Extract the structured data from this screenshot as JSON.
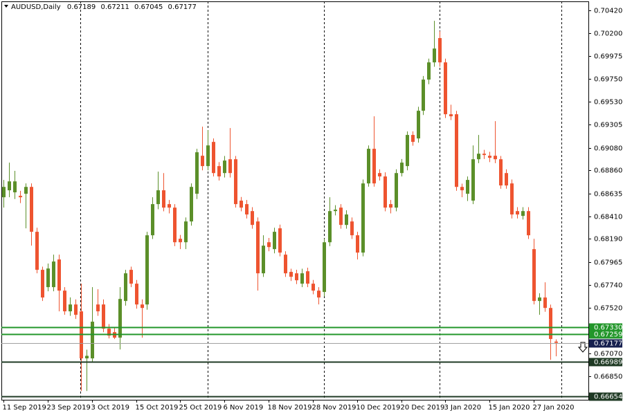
{
  "chart_data": {
    "type": "candlestick",
    "title": "AUDUSD,Daily",
    "bull_color": "#5b8f29",
    "bear_color": "#ee5430",
    "bid_color": "#a0a0a0",
    "bid_label_color": "#16204f",
    "categories": [
      "11 Sep 2019",
      null,
      null,
      null,
      null,
      null,
      null,
      null,
      "23 Sep 2019",
      null,
      null,
      null,
      null,
      null,
      null,
      null,
      "3 Oct 2019",
      null,
      null,
      null,
      null,
      null,
      null,
      null,
      "15 Oct 2019",
      null,
      null,
      null,
      null,
      null,
      null,
      null,
      "25 Oct 2019",
      null,
      null,
      null,
      null,
      null,
      null,
      null,
      "6 Nov 2019",
      null,
      null,
      null,
      null,
      null,
      null,
      null,
      "18 Nov 2019",
      null,
      null,
      null,
      null,
      null,
      null,
      null,
      "28 Nov 2019",
      null,
      null,
      null,
      null,
      null,
      null,
      null,
      "10 Dec 2019",
      null,
      null,
      null,
      null,
      null,
      null,
      null,
      "20 Dec 2019",
      null,
      null,
      null,
      null,
      null,
      null,
      null,
      "3 Jan 2020",
      null,
      null,
      null,
      null,
      null,
      null,
      null,
      "15 Jan 2020",
      null,
      null,
      null,
      null,
      null,
      null,
      null,
      "27 Jan 2020",
      null,
      null,
      null,
      null
    ],
    "open": [
      0.68597,
      0.68665,
      0.68645,
      0.68611,
      0.68631,
      0.68698,
      0.6826,
      0.67889,
      0.6772,
      0.6772,
      0.6799,
      0.67686,
      0.67484,
      0.67551,
      0.67484,
      0.67025,
      0.67025,
      0.67551,
      0.67551,
      0.67315,
      0.67281,
      0.67227,
      0.67585,
      0.67889,
      0.67754,
      0.67551,
      0.67551,
      0.68226,
      0.6853,
      0.68665,
      0.6853,
      0.68496,
      0.68192,
      0.68158,
      0.68361,
      0.68631,
      0.69002,
      0.68901,
      0.69137,
      0.68901,
      0.68833,
      0.68968,
      0.68968,
      0.68564,
      0.6853,
      0.68462,
      0.68361,
      0.67855,
      0.68158,
      0.68091,
      0.68294,
      0.68037,
      0.67869,
      0.67855,
      0.67754,
      0.67875,
      0.67754,
      0.67686,
      0.67673,
      0.68158,
      0.68462,
      0.68496,
      0.68327,
      0.68361,
      0.68226,
      0.68057,
      0.68732,
      0.6907,
      0.68833,
      0.688,
      0.6853,
      0.68496,
      0.68833,
      0.68901,
      0.69205,
      0.69171,
      0.69441,
      0.69745,
      0.69913,
      0.7015,
      0.69913,
      0.69407,
      0.69407,
      0.68698,
      0.68631,
      0.68564,
      0.68968,
      0.69022,
      0.69002,
      0.69002,
      0.68968,
      0.68833,
      0.68732,
      0.68462,
      0.68415,
      0.68462,
      0.68091,
      0.67585,
      0.67619,
      0.67517,
      0.67189
    ],
    "high": [
      0.68766,
      0.68935,
      0.68855,
      0.6866,
      0.68732,
      0.68732,
      0.683,
      0.6792,
      0.6795,
      0.68037,
      0.68037,
      0.6772,
      0.6762,
      0.676,
      0.67754,
      0.6711,
      0.6772,
      0.677,
      0.676,
      0.6736,
      0.6732,
      0.6772,
      0.67889,
      0.6792,
      0.6779,
      0.676,
      0.6826,
      0.68597,
      0.68847,
      0.68833,
      0.6857,
      0.6853,
      0.6823,
      0.684,
      0.68732,
      0.6907,
      0.69286,
      0.69252,
      0.69171,
      0.6894,
      0.69,
      0.69272,
      0.69,
      0.686,
      0.6857,
      0.685,
      0.684,
      0.68226,
      0.682,
      0.683,
      0.6833,
      0.6807,
      0.679,
      0.6789,
      0.679,
      0.6791,
      0.6779,
      0.6772,
      0.68192,
      0.68597,
      0.6852,
      0.6853,
      0.6847,
      0.684,
      0.6826,
      0.6877,
      0.69103,
      0.69387,
      0.6887,
      0.6884,
      0.6857,
      0.6887,
      0.6897,
      0.69239,
      0.6924,
      0.6948,
      0.6978,
      0.6995,
      0.70318,
      0.70217,
      0.6995,
      0.695,
      0.6944,
      0.6873,
      0.688,
      0.69103,
      0.69205,
      0.6906,
      0.6904,
      0.6934,
      0.69,
      0.6887,
      0.6877,
      0.685,
      0.685,
      0.685,
      0.68192,
      0.6766,
      0.67767,
      0.6755,
      0.67211
    ],
    "low": [
      0.68496,
      0.68597,
      0.6858,
      0.6854,
      0.68294,
      0.68125,
      0.67855,
      0.67585,
      0.6768,
      0.6768,
      0.67484,
      0.6745,
      0.6744,
      0.6741,
      0.66707,
      0.66707,
      0.6699,
      0.6744,
      0.67281,
      0.6722,
      0.67214,
      0.67112,
      0.6754,
      0.6772,
      0.6751,
      0.67227,
      0.675,
      0.6819,
      0.6848,
      0.6846,
      0.6844,
      0.6812,
      0.68091,
      0.68091,
      0.6832,
      0.6858,
      0.6886,
      0.6886,
      0.688,
      0.6876,
      0.6879,
      0.6879,
      0.68496,
      0.6846,
      0.6839,
      0.6829,
      0.67686,
      0.6782,
      0.6807,
      0.6805,
      0.6802,
      0.6782,
      0.6778,
      0.6775,
      0.6772,
      0.6772,
      0.6765,
      0.67551,
      0.6763,
      0.6812,
      0.6842,
      0.6829,
      0.6829,
      0.6819,
      0.6799,
      0.6802,
      0.687,
      0.687,
      0.6876,
      0.6846,
      0.6844,
      0.6846,
      0.688,
      0.6886,
      0.691,
      0.6913,
      0.694,
      0.697,
      0.6987,
      0.6987,
      0.6937,
      0.6935,
      0.6866,
      0.68597,
      0.6856,
      0.6853,
      0.6893,
      0.6897,
      0.6894,
      0.6893,
      0.6868,
      0.6868,
      0.6839,
      0.6839,
      0.6838,
      0.6819,
      0.67551,
      0.6745,
      0.6748,
      0.67011,
      0.67045
    ],
    "close": [
      0.68698,
      0.68752,
      0.68752,
      0.68597,
      0.68698,
      0.6826,
      0.67889,
      0.67619,
      0.67902,
      0.6797,
      0.67686,
      0.67484,
      0.67551,
      0.6745,
      0.67025,
      0.6705,
      0.67383,
      0.67484,
      0.67315,
      0.67247,
      0.67227,
      0.67605,
      0.67855,
      0.67754,
      0.67551,
      0.67517,
      0.68226,
      0.6853,
      0.68665,
      0.68496,
      0.68496,
      0.68158,
      0.68158,
      0.68361,
      0.68698,
      0.69036,
      0.68901,
      0.69103,
      0.68833,
      0.688,
      0.68955,
      0.68833,
      0.6853,
      0.68496,
      0.68429,
      0.68327,
      0.67855,
      0.68125,
      0.68111,
      0.6826,
      0.68057,
      0.67855,
      0.67821,
      0.67787,
      0.67855,
      0.67754,
      0.67686,
      0.67619,
      0.68158,
      0.68462,
      0.68476,
      0.68327,
      0.68429,
      0.68226,
      0.68057,
      0.68732,
      0.6907,
      0.68732,
      0.688,
      0.68496,
      0.68496,
      0.68833,
      0.68935,
      0.69205,
      0.69137,
      0.69441,
      0.69745,
      0.69913,
      0.70048,
      0.69913,
      0.69407,
      0.69387,
      0.68698,
      0.68665,
      0.68766,
      0.68968,
      0.69022,
      0.69009,
      0.68982,
      0.68968,
      0.68712,
      0.68712,
      0.68429,
      0.68429,
      0.68462,
      0.68226,
      0.67585,
      0.67619,
      0.67517,
      0.67214,
      0.67177
    ],
    "ylim": [
      0.66621,
      0.70508
    ],
    "yticks": [
      {
        "value": 0.7042,
        "label": "0.70420"
      },
      {
        "value": 0.702,
        "label": "0.70200"
      },
      {
        "value": 0.69975,
        "label": "0.69975"
      },
      {
        "value": 0.6975,
        "label": "0.69750"
      },
      {
        "value": 0.6953,
        "label": "0.69530"
      },
      {
        "value": 0.69305,
        "label": "0.69305"
      },
      {
        "value": 0.6908,
        "label": "0.69080"
      },
      {
        "value": 0.6886,
        "label": "0.68860"
      },
      {
        "value": 0.68635,
        "label": "0.68635"
      },
      {
        "value": 0.6841,
        "label": "0.68410"
      },
      {
        "value": 0.6819,
        "label": "0.68190"
      },
      {
        "value": 0.67965,
        "label": "0.67965"
      },
      {
        "value": 0.6774,
        "label": "0.67740"
      },
      {
        "value": 0.6752,
        "label": "0.67520"
      },
      {
        "value": 0.6707,
        "label": "0.67070"
      },
      {
        "value": 0.6685,
        "label": "0.66850"
      }
    ],
    "levels": [
      {
        "value": 0.6733,
        "label": "0.67330",
        "color": "#22962a"
      },
      {
        "value": 0.67259,
        "label": "0.67259",
        "color": "#22962a"
      },
      {
        "value": 0.66989,
        "label": "0.66989",
        "color": "#1f3a24"
      },
      {
        "value": 0.66654,
        "label": "0.66654",
        "color": "#1f3a24"
      }
    ]
  }
}
